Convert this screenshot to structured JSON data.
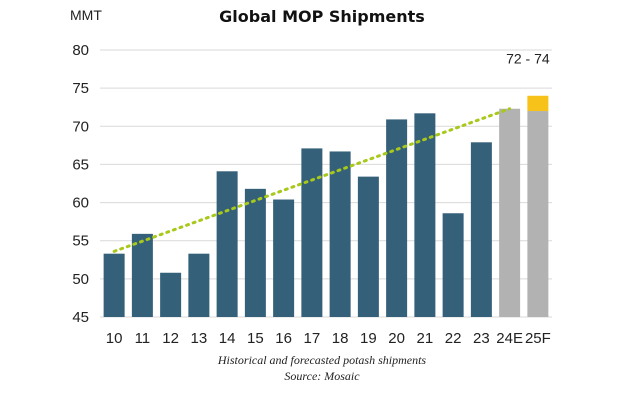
{
  "chart_data": {
    "type": "bar",
    "title": "Global MOP Shipments",
    "ylabel": "MMT",
    "xlabel": "",
    "ylim": [
      45,
      80
    ],
    "yticks": [
      45,
      50,
      55,
      60,
      65,
      70,
      75,
      80
    ],
    "grid": true,
    "categories": [
      "10",
      "11",
      "12",
      "13",
      "14",
      "15",
      "16",
      "17",
      "18",
      "19",
      "20",
      "21",
      "22",
      "23",
      "24E",
      "25F"
    ],
    "series": [
      {
        "name": "Historical",
        "color": "#34607a",
        "values": [
          53.3,
          55.9,
          50.8,
          53.3,
          64.1,
          61.8,
          60.4,
          67.1,
          66.7,
          63.4,
          70.9,
          71.7,
          58.6,
          67.9,
          null,
          null
        ]
      },
      {
        "name": "Forecast",
        "color": "#b2b2b2",
        "values": [
          null,
          null,
          null,
          null,
          null,
          null,
          null,
          null,
          null,
          null,
          null,
          null,
          null,
          null,
          72.3,
          72.0
        ]
      },
      {
        "name": "Forecast range",
        "color": "#f7c21a",
        "range": {
          "category": "25F",
          "low": 72.0,
          "high": 74.0
        }
      }
    ],
    "trend_line": {
      "color": "#a8c81a",
      "start": {
        "category": "10",
        "value": 53.6
      },
      "end": {
        "category": "24E",
        "value": 72.3
      }
    },
    "annotation": {
      "text": "72 - 74",
      "category": "25F"
    },
    "caption": [
      "Historical and forecasted potash shipments",
      "Source: Mosaic"
    ]
  }
}
